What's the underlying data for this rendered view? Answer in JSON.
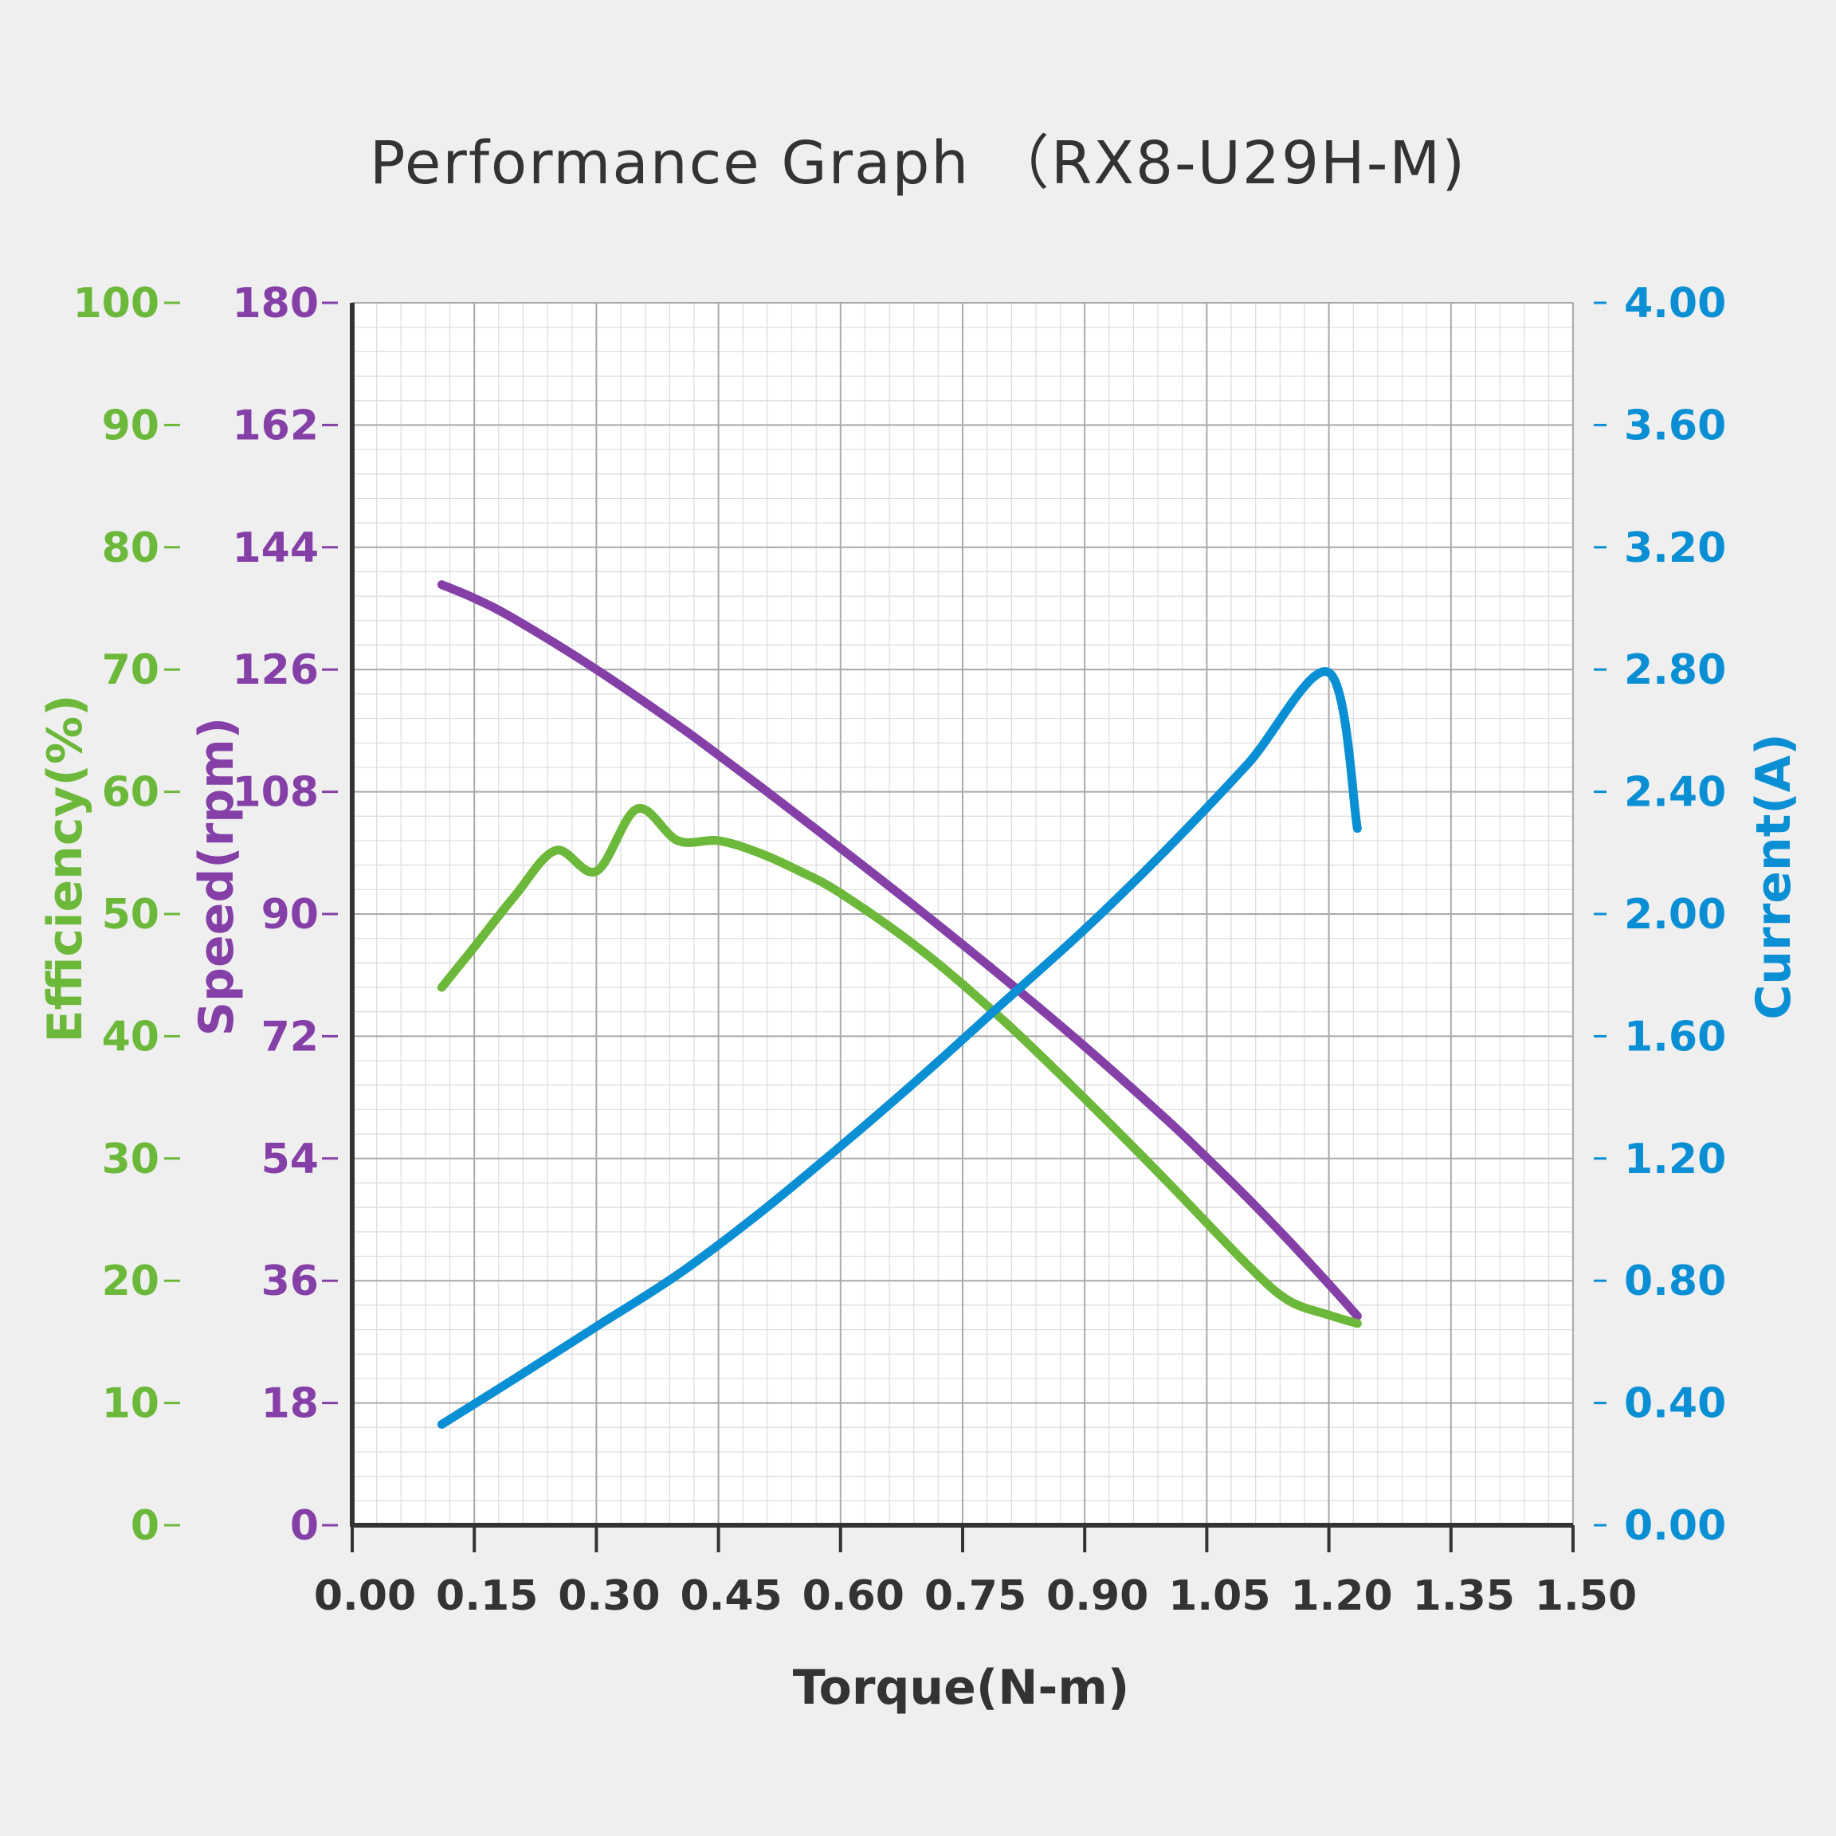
{
  "chart_data": {
    "type": "line",
    "title": "Performance Graph （RX8-U29H-M)",
    "xlabel": "Torque(N-m)",
    "xlim": [
      0,
      1.5
    ],
    "x_ticks": [
      "0.00",
      "0.15",
      "0.30",
      "0.45",
      "0.60",
      "0.75",
      "0.90",
      "1.05",
      "1.20",
      "1.35",
      "1.50"
    ],
    "grid": true,
    "axes": {
      "efficiency": {
        "label": "Efficiency(%)",
        "range": [
          0,
          100
        ],
        "ticks": [
          "0",
          "10",
          "20",
          "30",
          "40",
          "50",
          "60",
          "70",
          "80",
          "90",
          "100"
        ],
        "color": "#6cb83a"
      },
      "speed": {
        "label": "Speed(rpm)",
        "range": [
          0,
          180
        ],
        "ticks": [
          "0",
          "18",
          "36",
          "54",
          "72",
          "90",
          "108",
          "126",
          "144",
          "162",
          "180"
        ],
        "color": "#8540a8"
      },
      "current": {
        "label": "Current(A)",
        "range": [
          0,
          4
        ],
        "ticks": [
          "0.00",
          "0.40",
          "0.80",
          "1.20",
          "1.60",
          "2.00",
          "2.40",
          "2.80",
          "3.20",
          "3.60",
          "4.00"
        ],
        "color": "#0a8fd4"
      }
    },
    "series": [
      {
        "axis": "speed",
        "color": "#8540a8",
        "x": [
          0.11,
          0.15,
          0.2,
          0.3,
          0.4,
          0.45,
          0.5,
          0.6,
          0.7,
          0.8,
          0.9,
          1.0,
          1.05,
          1.1,
          1.15,
          1.2,
          1.235
        ],
        "y": [
          138.5,
          136.5,
          133.4,
          126.0,
          117.8,
          113.4,
          108.9,
          99.7,
          90.3,
          80.6,
          70.5,
          59.8,
          54.1,
          48.2,
          42.0,
          35.5,
          30.8
        ]
      },
      {
        "axis": "efficiency",
        "color": "#6cb83a",
        "x": [
          0.11,
          0.15,
          0.2,
          0.25,
          0.3,
          0.35,
          0.4,
          0.45,
          0.5,
          0.55,
          0.6,
          0.7,
          0.8,
          0.9,
          1.0,
          1.1,
          1.15,
          1.2,
          1.235
        ],
        "y": [
          44,
          47.3,
          51.5,
          55.2,
          53.5,
          58.6,
          56.0,
          56.0,
          55.0,
          53.5,
          51.7,
          47.0,
          41.3,
          34.9,
          28.2,
          21.3,
          18.4,
          17.2,
          16.5
        ]
      },
      {
        "axis": "current",
        "color": "#0a8fd4",
        "x": [
          0.11,
          0.2,
          0.3,
          0.4,
          0.5,
          0.6,
          0.7,
          0.8,
          0.9,
          1.0,
          1.1,
          1.2,
          1.235
        ],
        "y": [
          0.33,
          0.48,
          0.65,
          0.82,
          1.02,
          1.24,
          1.47,
          1.71,
          1.95,
          2.21,
          2.49,
          2.79,
          2.28
        ]
      }
    ]
  }
}
